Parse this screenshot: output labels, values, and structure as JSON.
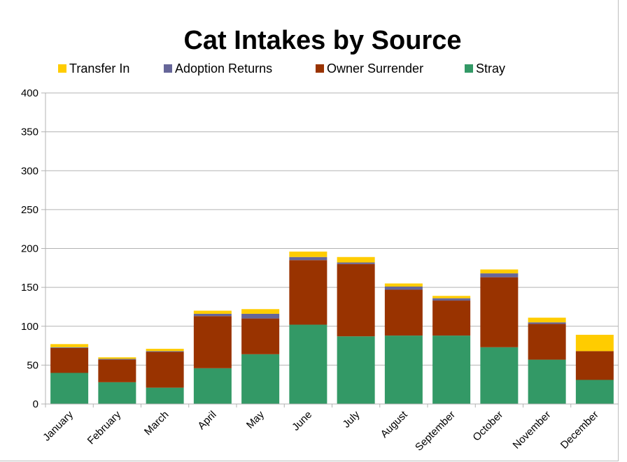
{
  "chart_data": {
    "type": "bar",
    "stacked": true,
    "title": "Cat Intakes by Source",
    "xlabel": "",
    "ylabel": "",
    "ylim": [
      0,
      400
    ],
    "yticks": [
      0,
      50,
      100,
      150,
      200,
      250,
      300,
      350,
      400
    ],
    "grid": true,
    "legend_position": "top",
    "categories": [
      "January",
      "February",
      "March",
      "April",
      "May",
      "June",
      "July",
      "August",
      "September",
      "October",
      "November",
      "December"
    ],
    "series": [
      {
        "name": "Stray",
        "color": "#339966",
        "values": [
          40,
          28,
          21,
          46,
          64,
          102,
          87,
          88,
          88,
          73,
          57,
          31
        ]
      },
      {
        "name": "Owner Surrender",
        "color": "#993300",
        "values": [
          32,
          29,
          46,
          67,
          46,
          83,
          93,
          59,
          45,
          90,
          46,
          37
        ]
      },
      {
        "name": "Adoption Returns",
        "color": "#666699",
        "values": [
          1,
          1,
          1,
          3,
          6,
          4,
          2,
          4,
          3,
          5,
          2,
          0
        ]
      },
      {
        "name": "Transfer In",
        "color": "#ffcc00",
        "values": [
          4,
          2,
          3,
          4,
          6,
          7,
          7,
          4,
          3,
          5,
          6,
          21
        ]
      }
    ],
    "legend_order": [
      "Transfer In",
      "Adoption Returns",
      "Owner Surrender",
      "Stray"
    ]
  }
}
